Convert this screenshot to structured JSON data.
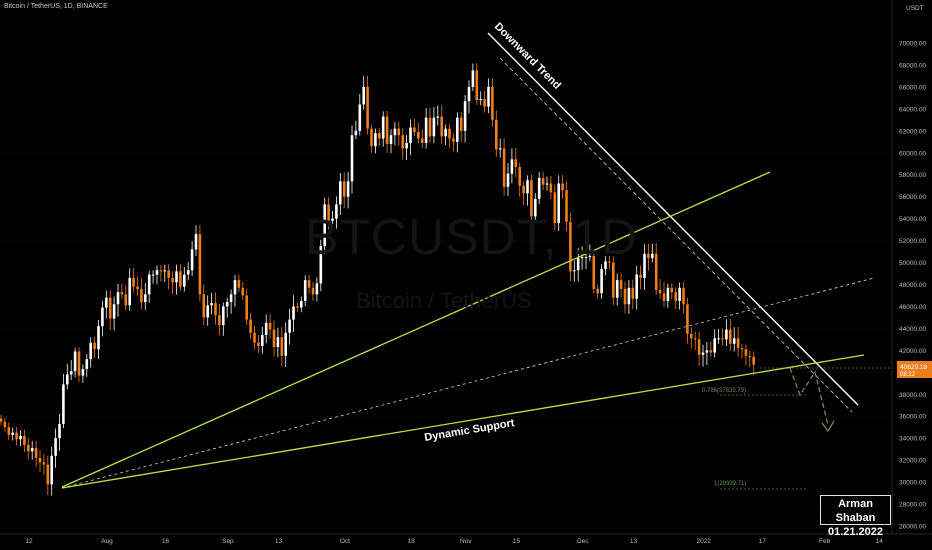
{
  "header": {
    "title": "Bitcoin / TetherUS, 1D, BINANCE"
  },
  "watermark": {
    "symbol": "BTCUSDT, 1D",
    "name": "Bitcoin / TetherUS"
  },
  "author": {
    "name": "Arman Shaban",
    "date": "01.21.2022"
  },
  "colors": {
    "up": "#ffffff",
    "down": "#ef7e1c",
    "support": "#b9e34d",
    "trend": "#ffffff",
    "price_tag": "#ef7e1c",
    "projection": "#6b8e5a"
  },
  "chart_data": {
    "type": "candlestick",
    "y_unit": "USDT",
    "ylim": [
      26000,
      72000
    ],
    "y_ticks": [
      26000,
      28000,
      30000,
      32000,
      34000,
      36000,
      38000,
      40000,
      42000,
      44000,
      46000,
      48000,
      50000,
      52000,
      54000,
      56000,
      58000,
      60000,
      62000,
      64000,
      66000,
      68000,
      70000
    ],
    "y_tick_labels": [
      "26000.00",
      "28000.00",
      "30000.00",
      "32000.00",
      "34000.00",
      "36000.00",
      "38000.00",
      "40000.00",
      "42000.00",
      "44000.00",
      "46000.00",
      "48000.00",
      "50000.00",
      "52000.00",
      "54000.00",
      "56000.00",
      "58000.00",
      "60000.00",
      "62000.00",
      "64000.00",
      "66000.00",
      "68000.00",
      "70000.00"
    ],
    "x_tick_labels": [
      {
        "day": 0,
        "label": "12"
      },
      {
        "day": 20,
        "label": "Aug"
      },
      {
        "day": 35,
        "label": "16"
      },
      {
        "day": 51,
        "label": "Sep"
      },
      {
        "day": 64,
        "label": "13"
      },
      {
        "day": 81,
        "label": "Oct"
      },
      {
        "day": 98,
        "label": "18"
      },
      {
        "day": 112,
        "label": "Nov"
      },
      {
        "day": 125,
        "label": "15"
      },
      {
        "day": 142,
        "label": "Dec"
      },
      {
        "day": 155,
        "label": "13"
      },
      {
        "day": 173,
        "label": "2022"
      },
      {
        "day": 188,
        "label": "17"
      },
      {
        "day": 204,
        "label": "Feb"
      },
      {
        "day": 218,
        "label": "14"
      }
    ],
    "closes": [
      35500,
      35000,
      34300,
      34500,
      33900,
      34200,
      33400,
      32800,
      33100,
      32200,
      31800,
      31600,
      29800,
      32400,
      34000,
      35300,
      38900,
      39800,
      40100,
      41900,
      39700,
      40300,
      41200,
      42700,
      42100,
      44200,
      45900,
      46800,
      44900,
      46200,
      47300,
      47100,
      46100,
      48600,
      47800,
      47600,
      46400,
      47100,
      48900,
      48900,
      49300,
      49200,
      49300,
      48600,
      48200,
      49200,
      47800,
      48900,
      49300,
      51200,
      52600,
      47100,
      45000,
      46100,
      46300,
      45200,
      44300,
      46000,
      46400,
      47100,
      48400,
      47700,
      47000,
      44800,
      43600,
      42700,
      42400,
      43400,
      44500,
      43900,
      42300,
      43200,
      41500,
      43600,
      44800,
      46000,
      45900,
      46500,
      48400,
      47700,
      47100,
      48100,
      51500,
      55300,
      53800,
      54000,
      55300,
      57400,
      56000,
      57400,
      61600,
      62000,
      64400,
      66000,
      62200,
      60600,
      61800,
      61300,
      63300,
      60800,
      61600,
      62200,
      61600,
      60400,
      60900,
      62300,
      61900,
      61300,
      60900,
      63200,
      61500,
      63200,
      63300,
      61500,
      62200,
      61300,
      61000,
      63200,
      62000,
      64700,
      66000,
      67500,
      64800,
      64900,
      64200,
      66000,
      63000,
      60300,
      60400,
      56900,
      58100,
      59400,
      58700,
      57000,
      56300,
      57500,
      54200,
      55800,
      57700,
      57100,
      57200,
      56400,
      53600,
      57200,
      56600,
      53700,
      49200,
      49300,
      50400,
      50500,
      50500,
      50600,
      47600,
      47200,
      49400,
      50100,
      50000,
      46800,
      48400,
      47600,
      46200,
      47700,
      46700,
      48900,
      48600,
      50800,
      50400,
      50800,
      47500,
      47200,
      46500,
      47700,
      47300,
      46500,
      47700,
      46200,
      43500,
      43100,
      43000,
      41600,
      41800,
      42000,
      41800,
      43100,
      43100,
      43000,
      43900,
      42600,
      43100,
      42200,
      42100,
      41500,
      41400,
      40700
    ]
  },
  "annotations": {
    "downward_trend": "Downward Trend",
    "dynamic_support": "Dynamic Support",
    "fib_0786": "0.786(37825.79)",
    "fib_1": "1(29339.71)",
    "current_price": "40629.18",
    "countdown": "08:22"
  }
}
